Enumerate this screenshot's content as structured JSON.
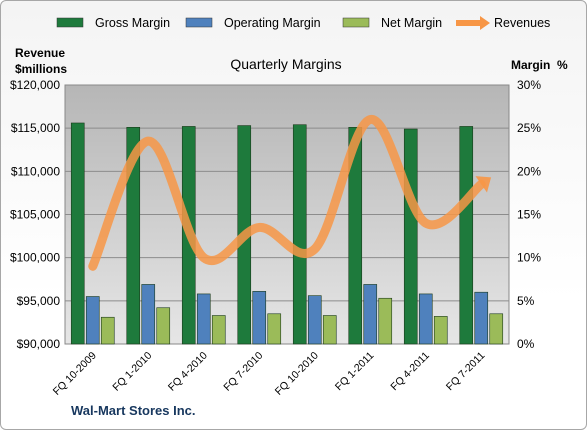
{
  "chart_data": {
    "type": "bar",
    "title": "Quarterly Margins",
    "company": "Wal-Mart Stores Inc.",
    "categories": [
      "FQ 10-2009",
      "FQ 1-2010",
      "FQ 4-2010",
      "FQ 7-2010",
      "FQ 10-2010",
      "FQ 1-2011",
      "FQ 4-2011",
      "FQ 7-2011"
    ],
    "series": [
      {
        "name": "Gross Margin",
        "axis": "right",
        "type": "bar",
        "values": [
          25.6,
          25.1,
          25.2,
          25.3,
          25.4,
          25.1,
          24.9,
          25.2
        ],
        "color": "#1e7a3c"
      },
      {
        "name": "Operating Margin",
        "axis": "right",
        "type": "bar",
        "values": [
          5.5,
          6.9,
          5.8,
          6.1,
          5.6,
          6.9,
          5.8,
          6.0
        ],
        "color": "#4f81bd"
      },
      {
        "name": "Net Margin",
        "axis": "right",
        "type": "bar",
        "values": [
          3.1,
          4.2,
          3.3,
          3.5,
          3.3,
          5.3,
          3.2,
          3.5
        ],
        "color": "#9bbb59"
      },
      {
        "name": "Revenues",
        "axis": "left",
        "type": "line",
        "values": [
          99000,
          113500,
          100000,
          103500,
          101000,
          116000,
          104000,
          108500
        ],
        "color": "#f79646"
      }
    ],
    "left_axis": {
      "label_line1": "Revenue",
      "label_line2": "$millions",
      "min": 90000,
      "max": 120000,
      "step": 5000,
      "ticks": [
        "$90,000",
        "$95,000",
        "$100,000",
        "$105,000",
        "$110,000",
        "$115,000",
        "$120,000"
      ]
    },
    "right_axis": {
      "label": "Margin  %",
      "min": 0,
      "max": 30,
      "step": 5,
      "ticks": [
        "0%",
        "5%",
        "10%",
        "15%",
        "20%",
        "25%",
        "30%"
      ]
    },
    "legend_position": "top",
    "grid": true
  }
}
